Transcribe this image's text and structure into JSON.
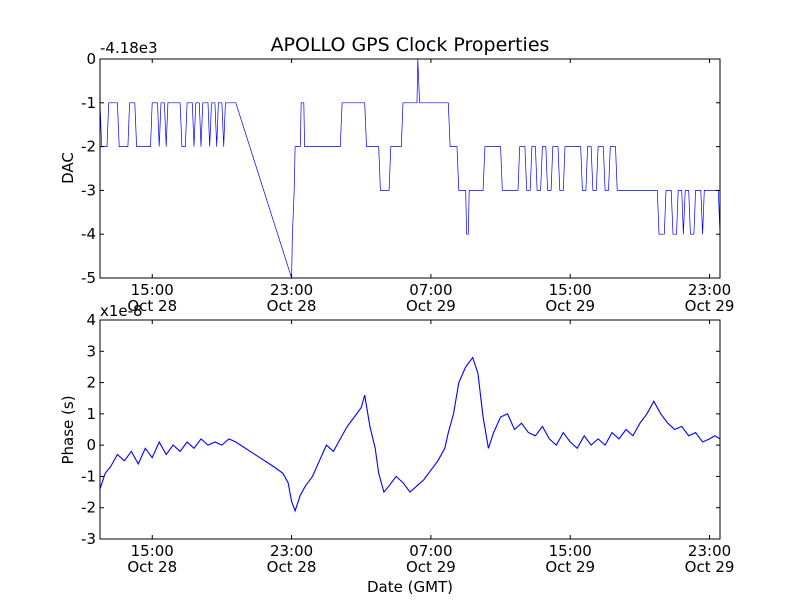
{
  "chart_data": [
    {
      "type": "line",
      "title": "APOLLO GPS Clock Properties",
      "ylabel": "DAC",
      "xlabel": "",
      "offset_label": "-4.18e3",
      "ylim": [
        -5,
        0
      ],
      "xlim_hours": [
        11.5,
        23.6
      ],
      "yticks": [
        {
          "value": 0,
          "label": "0"
        },
        {
          "value": -1,
          "label": "-1"
        },
        {
          "value": -2,
          "label": "-2"
        },
        {
          "value": -3,
          "label": "-3"
        },
        {
          "value": -4,
          "label": "-4"
        },
        {
          "value": -5,
          "label": "-5"
        }
      ],
      "xticks": [
        {
          "value": 15,
          "time": "15:00",
          "date": "Oct 28"
        },
        {
          "value": 23,
          "time": "23:00",
          "date": "Oct 28"
        },
        {
          "value": 31,
          "time": "07:00",
          "date": "Oct 29"
        },
        {
          "value": 39,
          "time": "15:00",
          "date": "Oct 29"
        },
        {
          "value": 47,
          "time": "23:00",
          "date": "Oct 29"
        }
      ],
      "xrange": [
        12.0,
        47.6
      ],
      "series": [
        {
          "points": [
            [
              12.0,
              -1
            ],
            [
              12.1,
              -2
            ],
            [
              12.4,
              -2
            ],
            [
              12.5,
              -1
            ],
            [
              13.0,
              -1
            ],
            [
              13.1,
              -2
            ],
            [
              13.6,
              -2
            ],
            [
              13.7,
              -1
            ],
            [
              14.0,
              -1
            ],
            [
              14.1,
              -2
            ],
            [
              14.9,
              -2
            ],
            [
              15.0,
              -1
            ],
            [
              15.3,
              -1
            ],
            [
              15.4,
              -2
            ],
            [
              15.5,
              -1
            ],
            [
              15.7,
              -1
            ],
            [
              15.8,
              -2
            ],
            [
              15.9,
              -1
            ],
            [
              16.6,
              -1
            ],
            [
              16.7,
              -2
            ],
            [
              16.9,
              -2
            ],
            [
              17.0,
              -1
            ],
            [
              17.3,
              -1
            ],
            [
              17.4,
              -2
            ],
            [
              17.5,
              -1
            ],
            [
              17.7,
              -1
            ],
            [
              17.8,
              -2
            ],
            [
              17.9,
              -1
            ],
            [
              18.2,
              -1
            ],
            [
              18.3,
              -2
            ],
            [
              18.4,
              -1
            ],
            [
              18.6,
              -1
            ],
            [
              18.7,
              -2
            ],
            [
              18.8,
              -1
            ],
            [
              19.0,
              -1
            ],
            [
              19.1,
              -2
            ],
            [
              19.2,
              -1
            ],
            [
              19.8,
              -1
            ],
            [
              23.0,
              -5
            ],
            [
              23.05,
              -4
            ],
            [
              23.15,
              -3
            ],
            [
              23.2,
              -2
            ],
            [
              23.5,
              -2
            ],
            [
              23.55,
              -1
            ],
            [
              23.7,
              -1
            ],
            [
              23.75,
              -2
            ],
            [
              25.8,
              -2
            ],
            [
              25.9,
              -1
            ],
            [
              27.2,
              -1
            ],
            [
              27.3,
              -2
            ],
            [
              28.0,
              -2
            ],
            [
              28.1,
              -3
            ],
            [
              28.6,
              -3
            ],
            [
              28.7,
              -2
            ],
            [
              29.3,
              -2
            ],
            [
              29.4,
              -1
            ],
            [
              30.2,
              -1
            ],
            [
              30.25,
              0
            ],
            [
              30.35,
              -1
            ],
            [
              32.0,
              -1
            ],
            [
              32.1,
              -2
            ],
            [
              32.5,
              -2
            ],
            [
              32.6,
              -3
            ],
            [
              33.0,
              -3
            ],
            [
              33.05,
              -4
            ],
            [
              33.15,
              -4
            ],
            [
              33.2,
              -3
            ],
            [
              34.0,
              -3
            ],
            [
              34.1,
              -2
            ],
            [
              35.0,
              -2
            ],
            [
              35.1,
              -3
            ],
            [
              36.0,
              -3
            ],
            [
              36.1,
              -2
            ],
            [
              36.4,
              -2
            ],
            [
              36.5,
              -3
            ],
            [
              36.7,
              -3
            ],
            [
              36.8,
              -2
            ],
            [
              37.0,
              -2
            ],
            [
              37.1,
              -3
            ],
            [
              37.3,
              -3
            ],
            [
              37.4,
              -2
            ],
            [
              37.6,
              -2
            ],
            [
              37.7,
              -3
            ],
            [
              37.9,
              -3
            ],
            [
              38.0,
              -2
            ],
            [
              38.3,
              -2
            ],
            [
              38.4,
              -3
            ],
            [
              38.6,
              -3
            ],
            [
              38.7,
              -2
            ],
            [
              39.6,
              -2
            ],
            [
              39.7,
              -3
            ],
            [
              39.9,
              -3
            ],
            [
              40.0,
              -2
            ],
            [
              40.2,
              -2
            ],
            [
              40.3,
              -3
            ],
            [
              40.5,
              -3
            ],
            [
              40.6,
              -2
            ],
            [
              40.9,
              -2
            ],
            [
              41.0,
              -3
            ],
            [
              41.2,
              -3
            ],
            [
              41.3,
              -2
            ],
            [
              41.6,
              -2
            ],
            [
              41.7,
              -3
            ],
            [
              44.0,
              -3
            ],
            [
              44.1,
              -4
            ],
            [
              44.4,
              -4
            ],
            [
              44.5,
              -3
            ],
            [
              44.8,
              -3
            ],
            [
              44.9,
              -4
            ],
            [
              45.1,
              -4
            ],
            [
              45.2,
              -3
            ],
            [
              45.4,
              -3
            ],
            [
              45.5,
              -4
            ],
            [
              45.6,
              -3
            ],
            [
              45.8,
              -3
            ],
            [
              45.9,
              -4
            ],
            [
              46.1,
              -4
            ],
            [
              46.2,
              -3
            ],
            [
              46.5,
              -3
            ],
            [
              46.6,
              -4
            ],
            [
              46.7,
              -3
            ],
            [
              47.5,
              -3
            ],
            [
              47.6,
              -4
            ]
          ]
        }
      ]
    },
    {
      "type": "line",
      "title": "",
      "ylabel": "Phase (s)",
      "xlabel": "Date (GMT)",
      "offset_label": "x1e-8",
      "ylim": [
        -3,
        4
      ],
      "yticks": [
        {
          "value": 4,
          "label": "4"
        },
        {
          "value": 3,
          "label": "3"
        },
        {
          "value": 2,
          "label": "2"
        },
        {
          "value": 1,
          "label": "1"
        },
        {
          "value": 0,
          "label": "0"
        },
        {
          "value": -1,
          "label": "-1"
        },
        {
          "value": -2,
          "label": "-2"
        },
        {
          "value": -3,
          "label": "-3"
        }
      ],
      "xticks": [
        {
          "value": 15,
          "time": "15:00",
          "date": "Oct 28"
        },
        {
          "value": 23,
          "time": "23:00",
          "date": "Oct 28"
        },
        {
          "value": 31,
          "time": "07:00",
          "date": "Oct 29"
        },
        {
          "value": 39,
          "time": "15:00",
          "date": "Oct 29"
        },
        {
          "value": 47,
          "time": "23:00",
          "date": "Oct 29"
        }
      ],
      "series": [
        {
          "points": [
            [
              12.0,
              -1.4
            ],
            [
              12.3,
              -0.9
            ],
            [
              12.6,
              -0.7
            ],
            [
              13.0,
              -0.3
            ],
            [
              13.4,
              -0.5
            ],
            [
              13.8,
              -0.2
            ],
            [
              14.2,
              -0.6
            ],
            [
              14.6,
              -0.1
            ],
            [
              15.0,
              -0.4
            ],
            [
              15.4,
              0.1
            ],
            [
              15.8,
              -0.3
            ],
            [
              16.2,
              0.0
            ],
            [
              16.6,
              -0.2
            ],
            [
              17.0,
              0.1
            ],
            [
              17.4,
              -0.1
            ],
            [
              17.8,
              0.2
            ],
            [
              18.2,
              0.0
            ],
            [
              18.6,
              0.1
            ],
            [
              19.0,
              0.0
            ],
            [
              19.4,
              0.2
            ],
            [
              19.8,
              0.1
            ],
            [
              22.0,
              -0.7
            ],
            [
              22.5,
              -0.9
            ],
            [
              22.8,
              -1.2
            ],
            [
              23.0,
              -1.8
            ],
            [
              23.2,
              -2.1
            ],
            [
              23.5,
              -1.6
            ],
            [
              23.8,
              -1.3
            ],
            [
              24.2,
              -1.0
            ],
            [
              24.6,
              -0.5
            ],
            [
              25.0,
              0.0
            ],
            [
              25.4,
              -0.2
            ],
            [
              25.8,
              0.2
            ],
            [
              26.2,
              0.6
            ],
            [
              26.6,
              0.9
            ],
            [
              27.0,
              1.2
            ],
            [
              27.2,
              1.6
            ],
            [
              27.5,
              0.6
            ],
            [
              27.8,
              -0.1
            ],
            [
              28.0,
              -0.9
            ],
            [
              28.3,
              -1.5
            ],
            [
              28.6,
              -1.3
            ],
            [
              29.0,
              -1.0
            ],
            [
              29.4,
              -1.2
            ],
            [
              29.8,
              -1.5
            ],
            [
              30.2,
              -1.3
            ],
            [
              30.6,
              -1.1
            ],
            [
              31.0,
              -0.8
            ],
            [
              31.4,
              -0.5
            ],
            [
              31.8,
              -0.1
            ],
            [
              32.0,
              0.4
            ],
            [
              32.3,
              1.0
            ],
            [
              32.6,
              2.0
            ],
            [
              33.0,
              2.5
            ],
            [
              33.4,
              2.8
            ],
            [
              33.7,
              2.3
            ],
            [
              34.0,
              0.9
            ],
            [
              34.3,
              -0.1
            ],
            [
              34.6,
              0.4
            ],
            [
              35.0,
              0.9
            ],
            [
              35.4,
              1.0
            ],
            [
              35.8,
              0.5
            ],
            [
              36.2,
              0.7
            ],
            [
              36.6,
              0.4
            ],
            [
              37.0,
              0.3
            ],
            [
              37.4,
              0.6
            ],
            [
              37.8,
              0.2
            ],
            [
              38.2,
              0.0
            ],
            [
              38.6,
              0.4
            ],
            [
              39.0,
              0.1
            ],
            [
              39.4,
              -0.1
            ],
            [
              39.8,
              0.3
            ],
            [
              40.2,
              0.0
            ],
            [
              40.6,
              0.2
            ],
            [
              41.0,
              0.0
            ],
            [
              41.4,
              0.4
            ],
            [
              41.8,
              0.2
            ],
            [
              42.2,
              0.5
            ],
            [
              42.6,
              0.3
            ],
            [
              43.0,
              0.7
            ],
            [
              43.4,
              1.0
            ],
            [
              43.8,
              1.4
            ],
            [
              44.2,
              1.0
            ],
            [
              44.6,
              0.7
            ],
            [
              45.0,
              0.5
            ],
            [
              45.4,
              0.6
            ],
            [
              45.8,
              0.3
            ],
            [
              46.2,
              0.4
            ],
            [
              46.6,
              0.1
            ],
            [
              47.0,
              0.2
            ],
            [
              47.3,
              0.3
            ],
            [
              47.6,
              0.2
            ]
          ]
        }
      ]
    }
  ]
}
